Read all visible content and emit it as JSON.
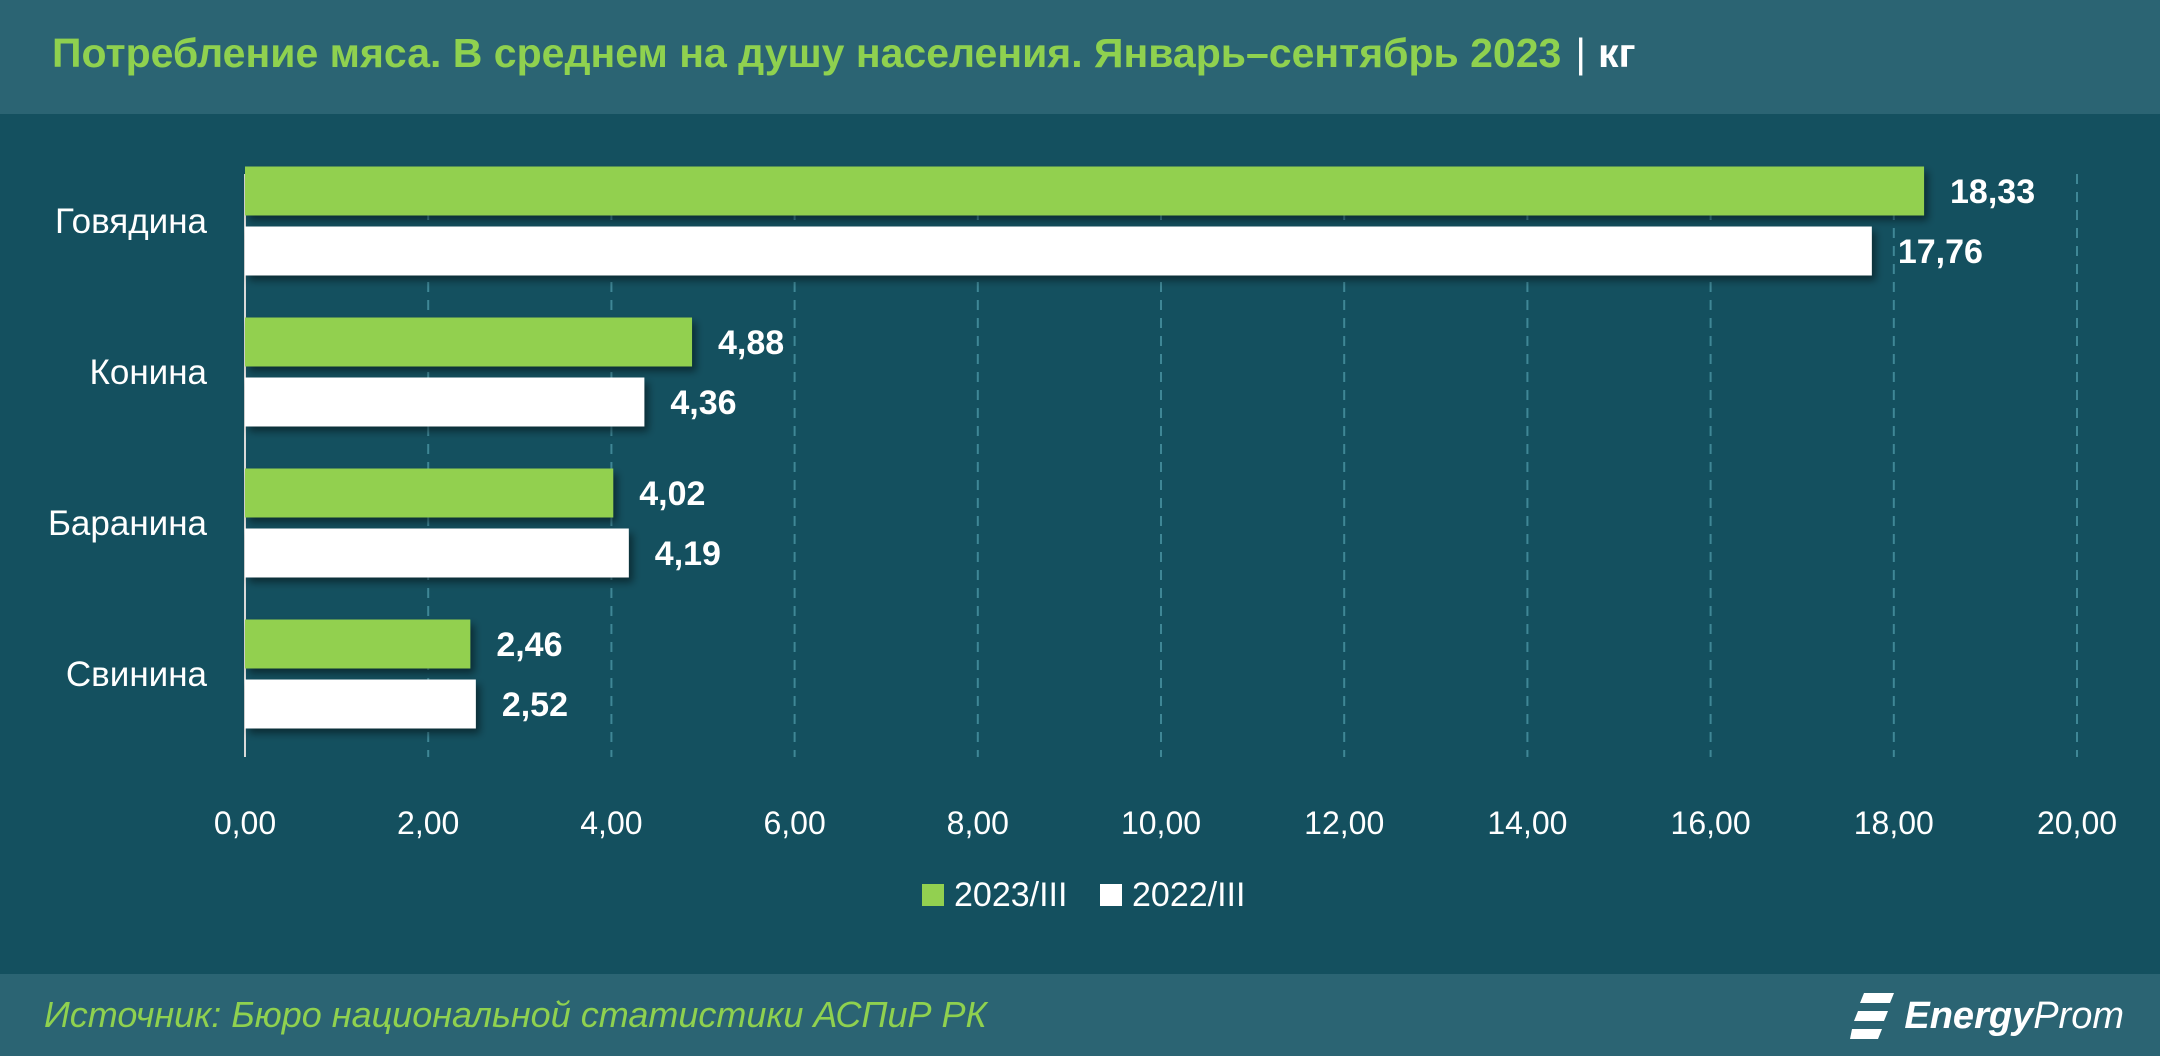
{
  "header": {
    "title": "Потребление мяса. В среднем на душу населения. Январь–сентябрь 2023",
    "separator": "|",
    "unit": "кг"
  },
  "footer": {
    "source": "Источник: Бюро национальной статистики АСПиР РК",
    "logo_bold": "Energy",
    "logo_regular": "Prom",
    "logo_icon": "energyprom-logo-icon"
  },
  "colors": {
    "background": "#14505f",
    "header_band": "#2b6473",
    "accent_green": "#8fd14f",
    "series_2023": "#92d050",
    "series_2022": "#ffffff",
    "grid": "#3f8796",
    "text": "#ffffff"
  },
  "chart_data": {
    "type": "bar",
    "orientation": "horizontal",
    "categories": [
      "Говядина",
      "Конина",
      "Баранина",
      "Свинина"
    ],
    "series": [
      {
        "name": "2023/III",
        "values": [
          18.33,
          4.88,
          4.02,
          2.46
        ],
        "labels": [
          "18,33",
          "4,88",
          "4,02",
          "2,46"
        ]
      },
      {
        "name": "2022/III",
        "values": [
          17.76,
          4.36,
          4.19,
          2.52
        ],
        "labels": [
          "17,76",
          "4,36",
          "4,19",
          "2,52"
        ]
      }
    ],
    "xlim": [
      0,
      20
    ],
    "xticks": [
      0,
      2,
      4,
      6,
      8,
      10,
      12,
      14,
      16,
      18,
      20
    ],
    "xtick_labels": [
      "0,00",
      "2,00",
      "4,00",
      "6,00",
      "8,00",
      "10,00",
      "12,00",
      "14,00",
      "16,00",
      "18,00",
      "20,00"
    ],
    "grid": "vertical dashed",
    "legend_position": "bottom-center"
  }
}
